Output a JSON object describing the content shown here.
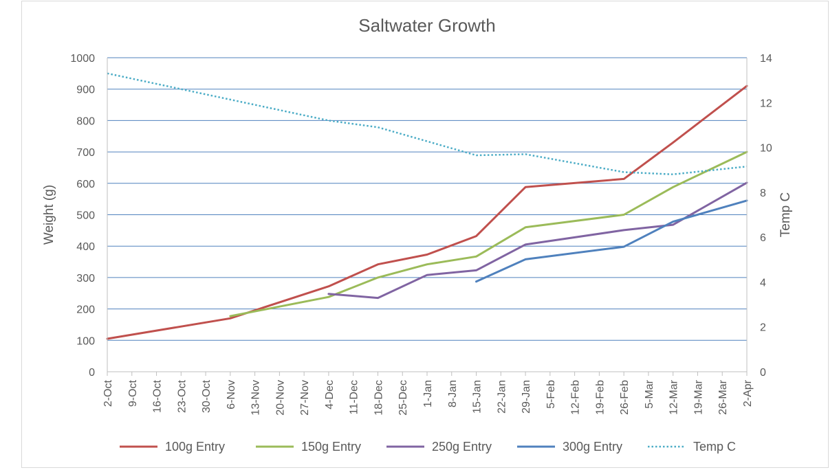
{
  "chart_data": {
    "type": "line",
    "title": "Saltwater Growth",
    "ylabel": "Weight (g)",
    "y2label": "Temp C",
    "ylim": [
      0,
      1000
    ],
    "y_ticks": [
      0,
      100,
      200,
      300,
      400,
      500,
      600,
      700,
      800,
      900,
      1000
    ],
    "y2lim": [
      0,
      14
    ],
    "y2_ticks": [
      0,
      2,
      4,
      6,
      8,
      10,
      12,
      14
    ],
    "grid": true,
    "legend_position": "bottom",
    "categories": [
      "2-Oct",
      "9-Oct",
      "16-Oct",
      "23-Oct",
      "30-Oct",
      "6-Nov",
      "13-Nov",
      "20-Nov",
      "27-Nov",
      "4-Dec",
      "11-Dec",
      "18-Dec",
      "25-Dec",
      "1-Jan",
      "8-Jan",
      "15-Jan",
      "22-Jan",
      "29-Jan",
      "5-Feb",
      "12-Feb",
      "19-Feb",
      "26-Feb",
      "5-Mar",
      "12-Mar",
      "19-Mar",
      "26-Mar",
      "2-Apr"
    ],
    "series": [
      {
        "name": "100g Entry",
        "axis": "left",
        "style": "solid",
        "color": "#c0504d",
        "points": [
          [
            "2-Oct",
            105
          ],
          [
            "6-Nov",
            170
          ],
          [
            "4-Dec",
            272
          ],
          [
            "18-Dec",
            342
          ],
          [
            "1-Jan",
            373
          ],
          [
            "15-Jan",
            432
          ],
          [
            "29-Jan",
            588
          ],
          [
            "26-Feb",
            614
          ],
          [
            "12-Mar",
            730
          ],
          [
            "2-Apr",
            910
          ]
        ]
      },
      {
        "name": "150g Entry",
        "axis": "left",
        "style": "solid",
        "color": "#9bbb59",
        "points": [
          [
            "6-Nov",
            177
          ],
          [
            "4-Dec",
            238
          ],
          [
            "18-Dec",
            300
          ],
          [
            "1-Jan",
            342
          ],
          [
            "15-Jan",
            367
          ],
          [
            "29-Jan",
            460
          ],
          [
            "26-Feb",
            500
          ],
          [
            "12-Mar",
            588
          ],
          [
            "2-Apr",
            700
          ]
        ]
      },
      {
        "name": "250g Entry",
        "axis": "left",
        "style": "solid",
        "color": "#8064a2",
        "points": [
          [
            "4-Dec",
            248
          ],
          [
            "18-Dec",
            235
          ],
          [
            "1-Jan",
            308
          ],
          [
            "15-Jan",
            323
          ],
          [
            "29-Jan",
            405
          ],
          [
            "26-Feb",
            451
          ],
          [
            "12-Mar",
            468
          ],
          [
            "2-Apr",
            602
          ]
        ]
      },
      {
        "name": "300g Entry",
        "axis": "left",
        "style": "solid",
        "color": "#4f81bd",
        "points": [
          [
            "15-Jan",
            287
          ],
          [
            "29-Jan",
            358
          ],
          [
            "26-Feb",
            398
          ],
          [
            "12-Mar",
            478
          ],
          [
            "2-Apr",
            545
          ]
        ]
      },
      {
        "name": "Temp C",
        "axis": "right",
        "style": "dotted",
        "color": "#4bacc6",
        "points": [
          [
            "2-Oct",
            13.3
          ],
          [
            "4-Dec",
            11.2
          ],
          [
            "18-Dec",
            10.9
          ],
          [
            "15-Jan",
            9.65
          ],
          [
            "29-Jan",
            9.7
          ],
          [
            "26-Feb",
            8.9
          ],
          [
            "12-Mar",
            8.8
          ],
          [
            "2-Apr",
            9.15
          ]
        ]
      }
    ]
  }
}
